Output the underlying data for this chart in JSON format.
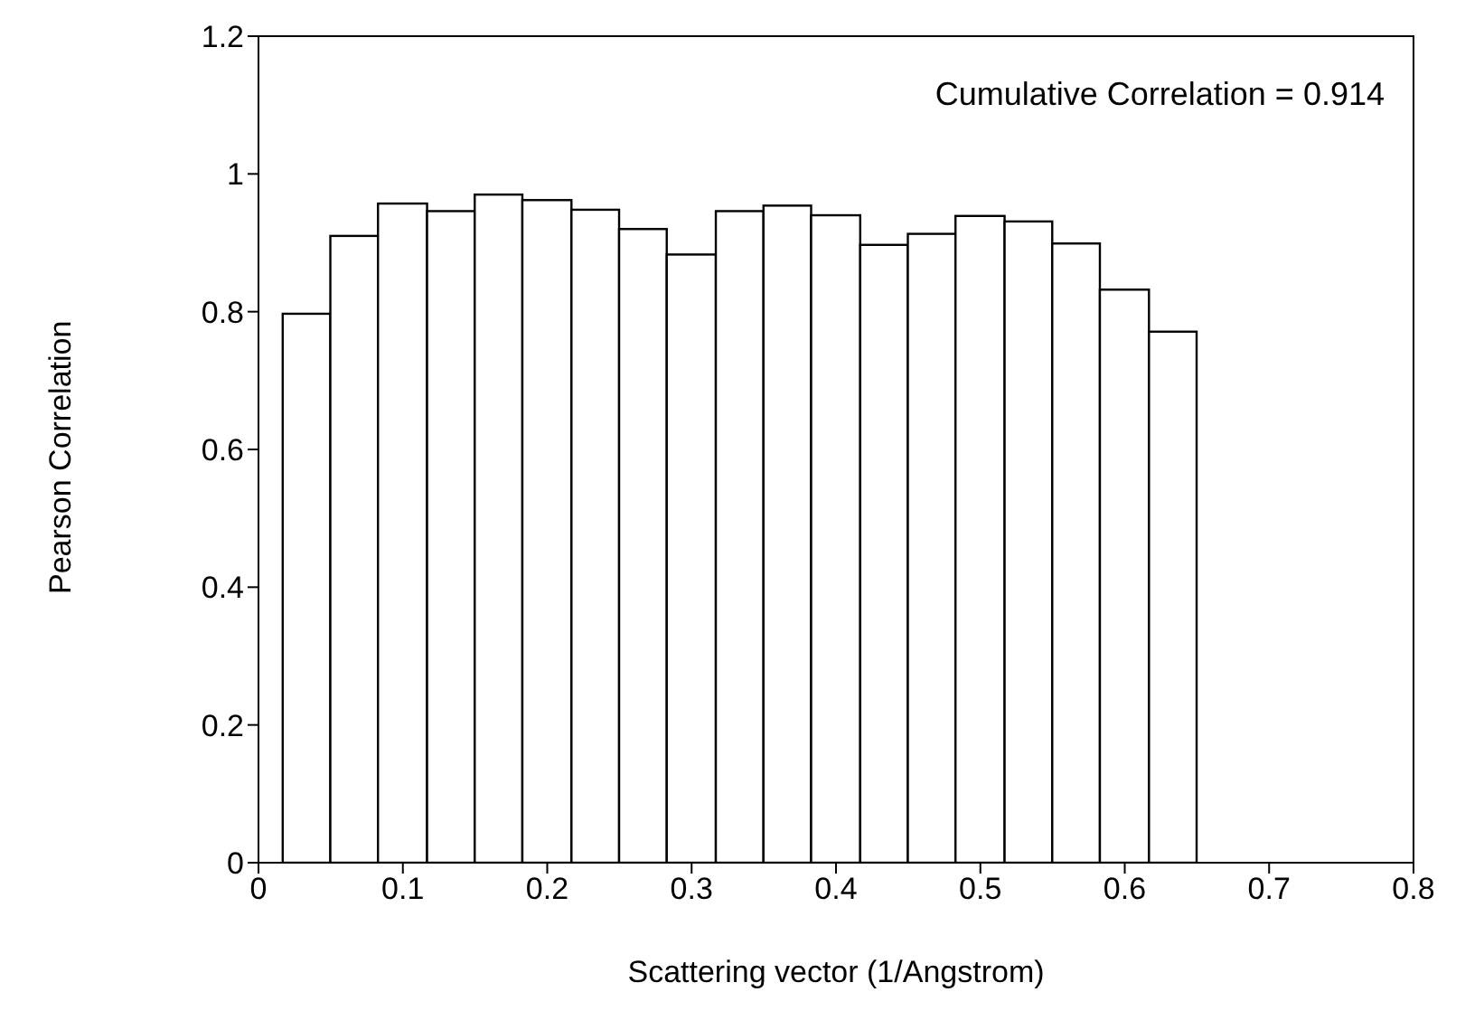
{
  "chart_data": {
    "type": "histogram",
    "xlabel": "Scattering vector (1/Angstrom)",
    "ylabel": "Pearson Correlation",
    "annotations": [
      "Cumulative Correlation = 0.914"
    ],
    "bins": [
      0.017,
      0.05,
      0.083,
      0.117,
      0.15,
      0.183,
      0.217,
      0.25,
      0.283,
      0.317,
      0.35,
      0.383,
      0.417,
      0.45,
      0.483,
      0.517,
      0.55,
      0.583,
      0.617,
      0.65
    ],
    "values": [
      0.797,
      0.91,
      0.957,
      0.946,
      0.97,
      0.962,
      0.948,
      0.92,
      0.883,
      0.946,
      0.954,
      0.94,
      0.897,
      0.913,
      0.939,
      0.931,
      0.899,
      0.832,
      0.771
    ],
    "color": "#ffffff",
    "xlim": [
      0,
      0.8
    ],
    "xticks": [
      0,
      0.1,
      0.2,
      0.3,
      0.4,
      0.5,
      0.6,
      0.7,
      0.8
    ],
    "ylim": [
      0,
      1.2
    ],
    "yticks": [
      0,
      0.2,
      0.4,
      0.6,
      0.8,
      1,
      1.2
    ],
    "grid": false
  }
}
